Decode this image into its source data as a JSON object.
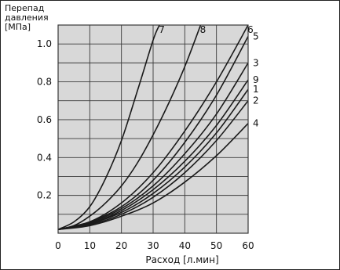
{
  "chart_data": {
    "type": "line",
    "ylabel_lines": [
      "Перепад",
      "давления",
      "[МПа]"
    ],
    "xlabel": "Расход [л.мин]",
    "xlim": [
      0,
      60
    ],
    "ylim": [
      0,
      1.1
    ],
    "x_ticks": [
      "0",
      "10",
      "20",
      "30",
      "40",
      "50",
      "60"
    ],
    "y_ticks": [
      "0.2",
      "0.4",
      "0.6",
      "0.8",
      "1.0"
    ],
    "grid": true,
    "colors": {
      "plot_bg": "#d8d8d8",
      "grid": "#3a3a3a",
      "line": "#1a1a1a"
    },
    "series": [
      {
        "name": "7",
        "x": [
          0,
          5,
          10,
          15,
          20,
          25,
          30,
          32
        ],
        "y": [
          0.02,
          0.06,
          0.14,
          0.29,
          0.49,
          0.75,
          1.02,
          1.1
        ]
      },
      {
        "name": "8",
        "x": [
          0,
          5,
          10,
          15,
          20,
          25,
          30,
          35,
          40,
          45
        ],
        "y": [
          0.02,
          0.04,
          0.09,
          0.16,
          0.25,
          0.37,
          0.52,
          0.69,
          0.88,
          1.1
        ]
      },
      {
        "name": "6",
        "x": [
          0,
          10,
          20,
          30,
          40,
          50,
          60
        ],
        "y": [
          0.02,
          0.06,
          0.16,
          0.32,
          0.54,
          0.8,
          1.1
        ]
      },
      {
        "name": "5",
        "x": [
          0,
          10,
          20,
          30,
          40,
          50,
          60
        ],
        "y": [
          0.02,
          0.06,
          0.14,
          0.28,
          0.48,
          0.73,
          1.04
        ]
      },
      {
        "name": "3",
        "x": [
          0,
          10,
          20,
          30,
          40,
          50,
          60
        ],
        "y": [
          0.02,
          0.055,
          0.13,
          0.25,
          0.42,
          0.63,
          0.9
        ]
      },
      {
        "name": "9",
        "x": [
          0,
          10,
          20,
          30,
          40,
          50,
          60
        ],
        "y": [
          0.02,
          0.05,
          0.12,
          0.23,
          0.38,
          0.57,
          0.81
        ]
      },
      {
        "name": "1",
        "x": [
          0,
          10,
          20,
          30,
          40,
          50,
          60
        ],
        "y": [
          0.02,
          0.05,
          0.11,
          0.21,
          0.35,
          0.53,
          0.76
        ]
      },
      {
        "name": "2",
        "x": [
          0,
          10,
          20,
          30,
          40,
          50,
          60
        ],
        "y": [
          0.02,
          0.045,
          0.1,
          0.19,
          0.32,
          0.49,
          0.7
        ]
      },
      {
        "name": "4",
        "x": [
          0,
          10,
          20,
          30,
          40,
          50,
          60
        ],
        "y": [
          0.02,
          0.04,
          0.09,
          0.16,
          0.27,
          0.41,
          0.58
        ]
      }
    ]
  }
}
